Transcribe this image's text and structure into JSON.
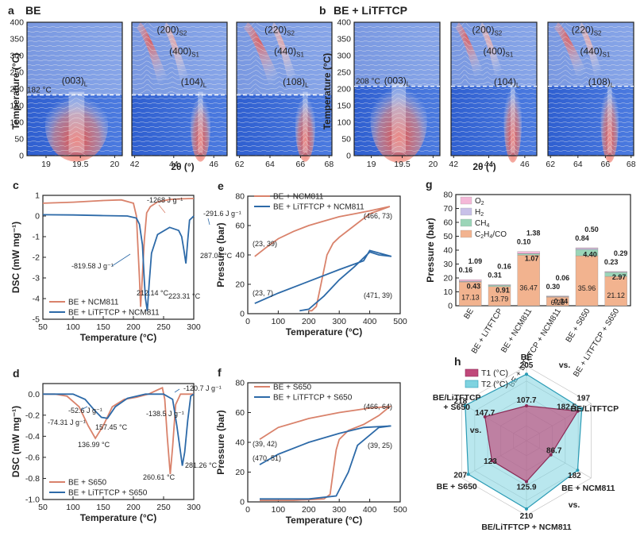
{
  "chart_data": [
    {
      "panel": "a",
      "type": "heatmap",
      "title": "BE",
      "ylabel": "Temperature (°C)",
      "xlabel": "2θ (°)",
      "ylim": [
        0,
        400
      ],
      "yticks": [
        "0",
        "50",
        "100",
        "150",
        "200",
        "250",
        "300",
        "350",
        "400"
      ],
      "subpanels": [
        {
          "xticks": [
            "19",
            "19.5",
            "20"
          ],
          "peaks": [
            "(003)L"
          ],
          "xlim": [
            18.75,
            20
          ]
        },
        {
          "xticks": [
            "42",
            "44",
            "46"
          ],
          "peaks": [
            "(200)S2",
            "(400)S1",
            "(104)L"
          ],
          "xlim": [
            42,
            46.8
          ]
        },
        {
          "xticks": [
            "62",
            "64",
            "66",
            "68"
          ],
          "peaks": [
            "(220)S2",
            "(440)S1",
            "(108)L"
          ],
          "xlim": [
            62,
            68
          ]
        }
      ],
      "transition": "182 °C"
    },
    {
      "panel": "b",
      "type": "heatmap",
      "title": "BE + LiTFTCP",
      "ylabel": "Temperature (°C)",
      "xlabel": "2θ (°)",
      "ylim": [
        0,
        400
      ],
      "yticks": [
        "0",
        "50",
        "100",
        "150",
        "200",
        "250",
        "300",
        "350",
        "400"
      ],
      "subpanels": [
        {
          "xticks": [
            "19",
            "19.5",
            "20"
          ],
          "peaks": [
            "(003)L"
          ]
        },
        {
          "xticks": [
            "42",
            "44",
            "46"
          ],
          "peaks": [
            "(200)S2",
            "(400)S1",
            "(104)L"
          ]
        },
        {
          "xticks": [
            "62",
            "64",
            "66",
            "68"
          ],
          "peaks": [
            "(220)S2",
            "(440)S1",
            "(108)L"
          ]
        }
      ],
      "transition": "208 °C"
    },
    {
      "panel": "c",
      "type": "line",
      "xlabel": "Temperature (°C)",
      "ylabel": "DSC (mW mg⁻¹)",
      "xlim": [
        50,
        300
      ],
      "ylim": [
        -5,
        1
      ],
      "xticks": [
        "50",
        "100",
        "150",
        "200",
        "250",
        "300"
      ],
      "yticks": [
        "1",
        "0",
        "-1",
        "-2",
        "-3",
        "-4",
        "-5"
      ],
      "series": [
        {
          "name": "BE + NCM811",
          "color": "#d9826b",
          "x": [
            50,
            100,
            150,
            180,
            200,
            205,
            210,
            212,
            214,
            218,
            222,
            228,
            240,
            260,
            280,
            300
          ],
          "y": [
            0.62,
            0.67,
            0.75,
            0.78,
            0.62,
            0.0,
            -3.0,
            -4.4,
            -3.4,
            -1.2,
            0.15,
            0.45,
            0.68,
            0.8,
            0.83,
            0.85
          ]
        },
        {
          "name": "BE + LiTFTCP + NCM811",
          "color": "#2d6aa8",
          "x": [
            50,
            100,
            150,
            190,
            205,
            210,
            215,
            218,
            220,
            223,
            226,
            230,
            240,
            260,
            275,
            280,
            284,
            287,
            290,
            293,
            300
          ],
          "y": [
            0.06,
            0.05,
            0.02,
            0.0,
            -0.1,
            -0.4,
            -1.4,
            -3.1,
            -4.0,
            -4.6,
            -3.3,
            -1.8,
            -0.9,
            -0.55,
            -0.7,
            -1.0,
            -1.7,
            -2.3,
            -1.2,
            -0.2,
            0.0
          ]
        }
      ],
      "annotations": [
        "-1268 J g⁻¹",
        "-291.6 J g⁻¹",
        "-819.58 J g⁻¹",
        "287.04 °C",
        "212.14 °C",
        "223.31 °C"
      ]
    },
    {
      "panel": "d",
      "type": "line",
      "xlabel": "Temperature (°C)",
      "ylabel": "DSC (mW mg⁻¹)",
      "xlim": [
        50,
        300
      ],
      "ylim": [
        -1.0,
        0.1
      ],
      "xticks": [
        "50",
        "100",
        "150",
        "200",
        "250",
        "300"
      ],
      "yticks": [
        "0.0",
        "-0.2",
        "-0.4",
        "-0.6",
        "-0.8",
        "-1.0"
      ],
      "series": [
        {
          "name": "BE + S650",
          "color": "#d9826b",
          "x": [
            50,
            70,
            90,
            110,
            125,
            137,
            150,
            165,
            185,
            205,
            225,
            240,
            248,
            252,
            256,
            261,
            265,
            270,
            278,
            290,
            300
          ],
          "y": [
            0.0,
            0.0,
            -0.02,
            -0.12,
            -0.3,
            -0.42,
            -0.3,
            -0.12,
            -0.05,
            -0.03,
            0.0,
            0.04,
            0.06,
            -0.05,
            -0.4,
            -0.76,
            -0.5,
            -0.1,
            0.0,
            0.0,
            0.0
          ]
        },
        {
          "name": "BE + LiTFTCP + S650",
          "color": "#2d6aa8",
          "x": [
            50,
            80,
            100,
            120,
            135,
            147,
            157,
            170,
            190,
            220,
            250,
            265,
            272,
            278,
            281,
            285,
            290,
            295,
            300
          ],
          "y": [
            0.0,
            0.0,
            0.0,
            -0.05,
            -0.15,
            -0.22,
            -0.23,
            -0.12,
            -0.04,
            0.0,
            0.0,
            -0.05,
            -0.3,
            -0.55,
            -0.68,
            -0.55,
            -0.25,
            -0.02,
            0.0
          ]
        }
      ],
      "annotations": [
        "-52.6 J g⁻¹",
        "-120.7 J g⁻¹",
        "-74.31 J g⁻¹",
        "157.45 °C",
        "136.99 °C",
        "-138.5 J g⁻¹",
        "281.26 °C",
        "260.61 °C"
      ]
    },
    {
      "panel": "e",
      "type": "line",
      "xlabel": "Temperature (°C)",
      "ylabel": "Pressure (bar)",
      "xlim": [
        0,
        500
      ],
      "ylim": [
        0,
        80
      ],
      "xticks": [
        "0",
        "100",
        "200",
        "300",
        "400",
        "500"
      ],
      "yticks": [
        "0",
        "20",
        "40",
        "60",
        "80"
      ],
      "series": [
        {
          "name": "BE + NCM811",
          "color": "#d9826b",
          "x": [
            23,
            60,
            100,
            150,
            200,
            250,
            300,
            350,
            400,
            466,
            440,
            400,
            350,
            300,
            280,
            260,
            250,
            240,
            225,
            210,
            200
          ],
          "y": [
            39,
            45,
            51,
            56,
            60,
            63,
            66,
            68,
            70,
            73,
            71,
            68,
            60,
            52,
            48,
            40,
            30,
            20,
            5,
            2,
            2
          ]
        },
        {
          "name": "BE + LiTFTCP + NCM811",
          "color": "#2d6aa8",
          "x": [
            23,
            100,
            200,
            300,
            380,
            400,
            471,
            430,
            400,
            350,
            300,
            250,
            200,
            170
          ],
          "y": [
            7,
            14,
            22,
            30,
            36,
            43,
            39,
            40,
            42,
            32,
            23,
            12,
            3,
            2
          ]
        }
      ],
      "annotations": [
        "(466, 73)",
        "(23, 39)",
        "(23, 7)",
        "(471, 39)"
      ]
    },
    {
      "panel": "f",
      "type": "line",
      "xlabel": "Temperature (°C)",
      "ylabel": "Pressure (bar)",
      "xlim": [
        0,
        500
      ],
      "ylim": [
        0,
        80
      ],
      "xticks": [
        "0",
        "100",
        "200",
        "300",
        "400",
        "500"
      ],
      "yticks": [
        "0",
        "20",
        "40",
        "60",
        "80"
      ],
      "series": [
        {
          "name": "BE + S650",
          "color": "#d9826b",
          "x": [
            39,
            100,
            200,
            300,
            400,
            466,
            430,
            380,
            330,
            300,
            290,
            280,
            270,
            250,
            150,
            39
          ],
          "y": [
            42,
            50,
            56,
            60,
            63,
            64,
            58,
            52,
            48,
            42,
            35,
            20,
            5,
            2,
            1,
            1
          ]
        },
        {
          "name": "BE + LiTFTCP + S650",
          "color": "#2d6aa8",
          "x": [
            39,
            100,
            200,
            300,
            380,
            470,
            430,
            360,
            330,
            310,
            300,
            290,
            200,
            39
          ],
          "y": [
            25,
            32,
            40,
            46,
            50,
            51,
            50,
            38,
            20,
            12,
            8,
            4,
            2,
            2
          ]
        }
      ],
      "annotations": [
        "(466, 64)",
        "(39, 42)",
        "(470, 51)",
        "(39, 25)"
      ]
    },
    {
      "panel": "g",
      "type": "bar",
      "stacked": true,
      "ylabel": "Pressure (bar)",
      "ylim": [
        0,
        80
      ],
      "yticks": [
        "0",
        "10",
        "20",
        "30",
        "40",
        "50",
        "60",
        "70",
        "80"
      ],
      "categories": [
        "BE",
        "BE + LiTFTCP",
        "BE + NCM811",
        "BE + LiTFTCP + NCM811",
        "BE + S650",
        "BE + LiTFTCP + S650"
      ],
      "series": [
        {
          "name": "C2H4/CO",
          "color": "#f2b38f",
          "values": [
            17.13,
            13.79,
            36.47,
            6.25,
            35.96,
            21.12
          ]
        },
        {
          "name": "CH4",
          "color": "#9bd5b8",
          "values": [
            0.43,
            0.91,
            1.07,
            0.34,
            4.4,
            2.97
          ]
        },
        {
          "name": "H2",
          "color": "#c8c0e8",
          "values": [
            0.16,
            0.31,
            0.1,
            0.3,
            0.84,
            0.23
          ]
        },
        {
          "name": "O2",
          "color": "#f4b8d8",
          "values": [
            1.09,
            0.16,
            1.38,
            0.06,
            0.5,
            0.29
          ]
        }
      ]
    },
    {
      "panel": "h",
      "type": "radar",
      "axes": [
        "BE",
        "BE/LiTFTCP",
        "BE + NCM811",
        "BE/LiTFTCP + NCM811",
        "BE + S650",
        "BE/LiTFTCP + S650"
      ],
      "vs_label": "vs.",
      "series": [
        {
          "name": "T1 (°C)",
          "color": "#c0487a",
          "values": [
            107.7,
            182.5,
            86.7,
            125.9,
            123,
            147.7
          ]
        },
        {
          "name": "T2 (°C)",
          "color": "#7fd3e0",
          "values": [
            205,
            197,
            182,
            210,
            207,
            218
          ]
        }
      ],
      "rmax": 230
    }
  ]
}
